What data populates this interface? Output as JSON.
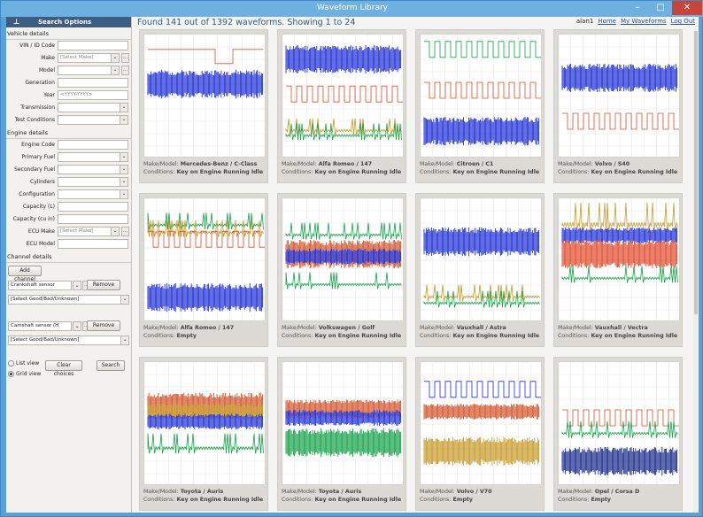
{
  "window": {
    "title": "Waveform Library"
  },
  "sidebar": {
    "header": "Search Options",
    "vehicle_title": "Vehicle details",
    "vehicle_fields": [
      {
        "label": "VIN / ID Code",
        "value": "",
        "type": "text"
      },
      {
        "label": "Make",
        "value": "[Select Make]",
        "type": "select-ell"
      },
      {
        "label": "Model",
        "value": "",
        "type": "select-ell"
      },
      {
        "label": "Generation",
        "value": "",
        "type": "text"
      },
      {
        "label": "Year",
        "value": "<YYYY-YYYY>",
        "type": "text"
      },
      {
        "label": "Transmission",
        "value": "",
        "type": "select"
      },
      {
        "label": "Test Conditions",
        "value": "",
        "type": "select"
      }
    ],
    "engine_title": "Engine details",
    "engine_fields": [
      {
        "label": "Engine Code",
        "value": "",
        "type": "text"
      },
      {
        "label": "Primary Fuel",
        "value": "",
        "type": "select"
      },
      {
        "label": "Secondary Fuel",
        "value": "",
        "type": "select"
      },
      {
        "label": "Cylinders",
        "value": "",
        "type": "select"
      },
      {
        "label": "Configuration",
        "value": "",
        "type": "select"
      },
      {
        "label": "Capacity (L)",
        "value": "",
        "type": "text"
      },
      {
        "label": "Capacity (cu in)",
        "value": "",
        "type": "text"
      },
      {
        "label": "ECU Make",
        "value": "[Select Make]",
        "type": "select-ell"
      },
      {
        "label": "ECU Model",
        "value": "",
        "type": "text"
      }
    ],
    "channel_title": "Channel details",
    "add_channel": "Add channel",
    "channels": [
      {
        "sensor": "Crankshaft sensor",
        "quality": "[Select Good/Bad/Unknown]",
        "remove": "Remove"
      },
      {
        "sensor": "Camshaft sensor (H",
        "quality": "[Select Good/Bad/Unknown]",
        "remove": "Remove"
      }
    ],
    "list_view": "List view",
    "grid_view": "Grid view",
    "clear": "Clear choices",
    "search": "Search"
  },
  "header": {
    "found": "Found 141 out of 1392 waveforms. Showing 1 to 24",
    "user": "alan1",
    "links": [
      "Home",
      "My Waveforms",
      "Log Out"
    ]
  },
  "cards": [
    {
      "make_model": "Mercedes-Benz / C-Class",
      "conditions": "Key on Engine Running Idle",
      "traces": [
        [
          "#d2542b",
          1,
          0.12,
          "step"
        ],
        [
          "#1f2fd6",
          0.9,
          0.4,
          "dense"
        ]
      ]
    },
    {
      "make_model": "Alfa Romeo / 147",
      "conditions": "Key on Engine Running Idle",
      "traces": [
        [
          "#1f2fd6",
          0.9,
          0.2,
          "dense"
        ],
        [
          "#d2542b",
          0.5,
          0.48,
          "square"
        ],
        [
          "#c89a2a",
          0.5,
          0.78,
          "spike"
        ],
        [
          "#16a34a",
          0.5,
          0.82,
          "spike"
        ]
      ]
    },
    {
      "make_model": "Citroen / C1",
      "conditions": "Key on Engine Running Idle",
      "traces": [
        [
          "#16a34a",
          0.5,
          0.12,
          "square"
        ],
        [
          "#d2542b",
          0.5,
          0.45,
          "square"
        ],
        [
          "#1f2fd6",
          0.9,
          0.78,
          "dense"
        ]
      ]
    },
    {
      "make_model": "Volvo / S40",
      "conditions": "Key on Engine Running Idle",
      "traces": [
        [
          "#1f2fd6",
          0.9,
          0.35,
          "dense"
        ],
        [
          "#d2542b",
          0.5,
          0.7,
          "square"
        ]
      ]
    },
    {
      "make_model": "Alfa Romeo / 147",
      "conditions": "Empty",
      "traces": [
        [
          "#16a34a",
          0.5,
          0.22,
          "spike"
        ],
        [
          "#c89a2a",
          0.5,
          0.28,
          "spike"
        ],
        [
          "#d2542b",
          0.5,
          0.33,
          "square"
        ],
        [
          "#1f2fd6",
          0.9,
          0.8,
          "dense"
        ]
      ]
    },
    {
      "make_model": "Volkswagen / Golf",
      "conditions": "Key on Engine Running Idle",
      "traces": [
        [
          "#16a34a",
          0.5,
          0.3,
          "spike"
        ],
        [
          "#d2542b",
          0.9,
          0.45,
          "dense"
        ],
        [
          "#1f2fd6",
          0.5,
          0.47,
          "dense"
        ],
        [
          "#16a34a",
          0.5,
          0.7,
          "spike"
        ]
      ]
    },
    {
      "make_model": "Vauxhall / Astra",
      "conditions": "Key on Engine Running Idle",
      "traces": [
        [
          "#1f2fd6",
          0.9,
          0.35,
          "dense"
        ],
        [
          "#c89a2a",
          0.5,
          0.8,
          "spike"
        ],
        [
          "#16a34a",
          0.5,
          0.85,
          "spike"
        ]
      ]
    },
    {
      "make_model": "Vauxhall / Vectra",
      "conditions": "Key on Engine Running Idle",
      "traces": [
        [
          "#c89a2a",
          0.9,
          0.22,
          "spike"
        ],
        [
          "#1f2fd6",
          0.5,
          0.3,
          "dense"
        ],
        [
          "#e04b2d",
          0.9,
          0.45,
          "dense"
        ],
        [
          "#16a34a",
          0.5,
          0.65,
          "spike"
        ]
      ]
    },
    {
      "make_model": "Toyota / Auris",
      "conditions": "Key on Engine Running Idle",
      "traces": [
        [
          "#d2542b",
          0.8,
          0.35,
          "dense"
        ],
        [
          "#c89a2a",
          0.5,
          0.4,
          "dense"
        ],
        [
          "#1f2fd6",
          0.5,
          0.48,
          "dense"
        ],
        [
          "#16a34a",
          0.6,
          0.7,
          "spike"
        ]
      ]
    },
    {
      "make_model": "Toyota / Auris",
      "conditions": "Key on Engine Running Idle",
      "traces": [
        [
          "#d2542b",
          0.6,
          0.38,
          "dense"
        ],
        [
          "#1f2fd6",
          0.5,
          0.45,
          "dense"
        ],
        [
          "#16a34a",
          0.9,
          0.65,
          "dense"
        ]
      ]
    },
    {
      "make_model": "Volvo / V70",
      "conditions": "Empty",
      "traces": [
        [
          "#1f2fd6",
          0.5,
          0.22,
          "square"
        ],
        [
          "#d2542b",
          0.5,
          0.4,
          "dense"
        ],
        [
          "#c89a2a",
          0.9,
          0.72,
          "dense"
        ]
      ]
    },
    {
      "make_model": "Opel / Corsa D",
      "conditions": "Empty",
      "traces": [
        [
          "#d2542b",
          0.5,
          0.45,
          "square"
        ],
        [
          "#16a34a",
          0.5,
          0.58,
          "spike"
        ],
        [
          "#1a2a8a",
          0.9,
          0.8,
          "dense"
        ]
      ]
    }
  ],
  "labels": {
    "make_model": "Make/Model:",
    "conditions": "Conditions:"
  }
}
